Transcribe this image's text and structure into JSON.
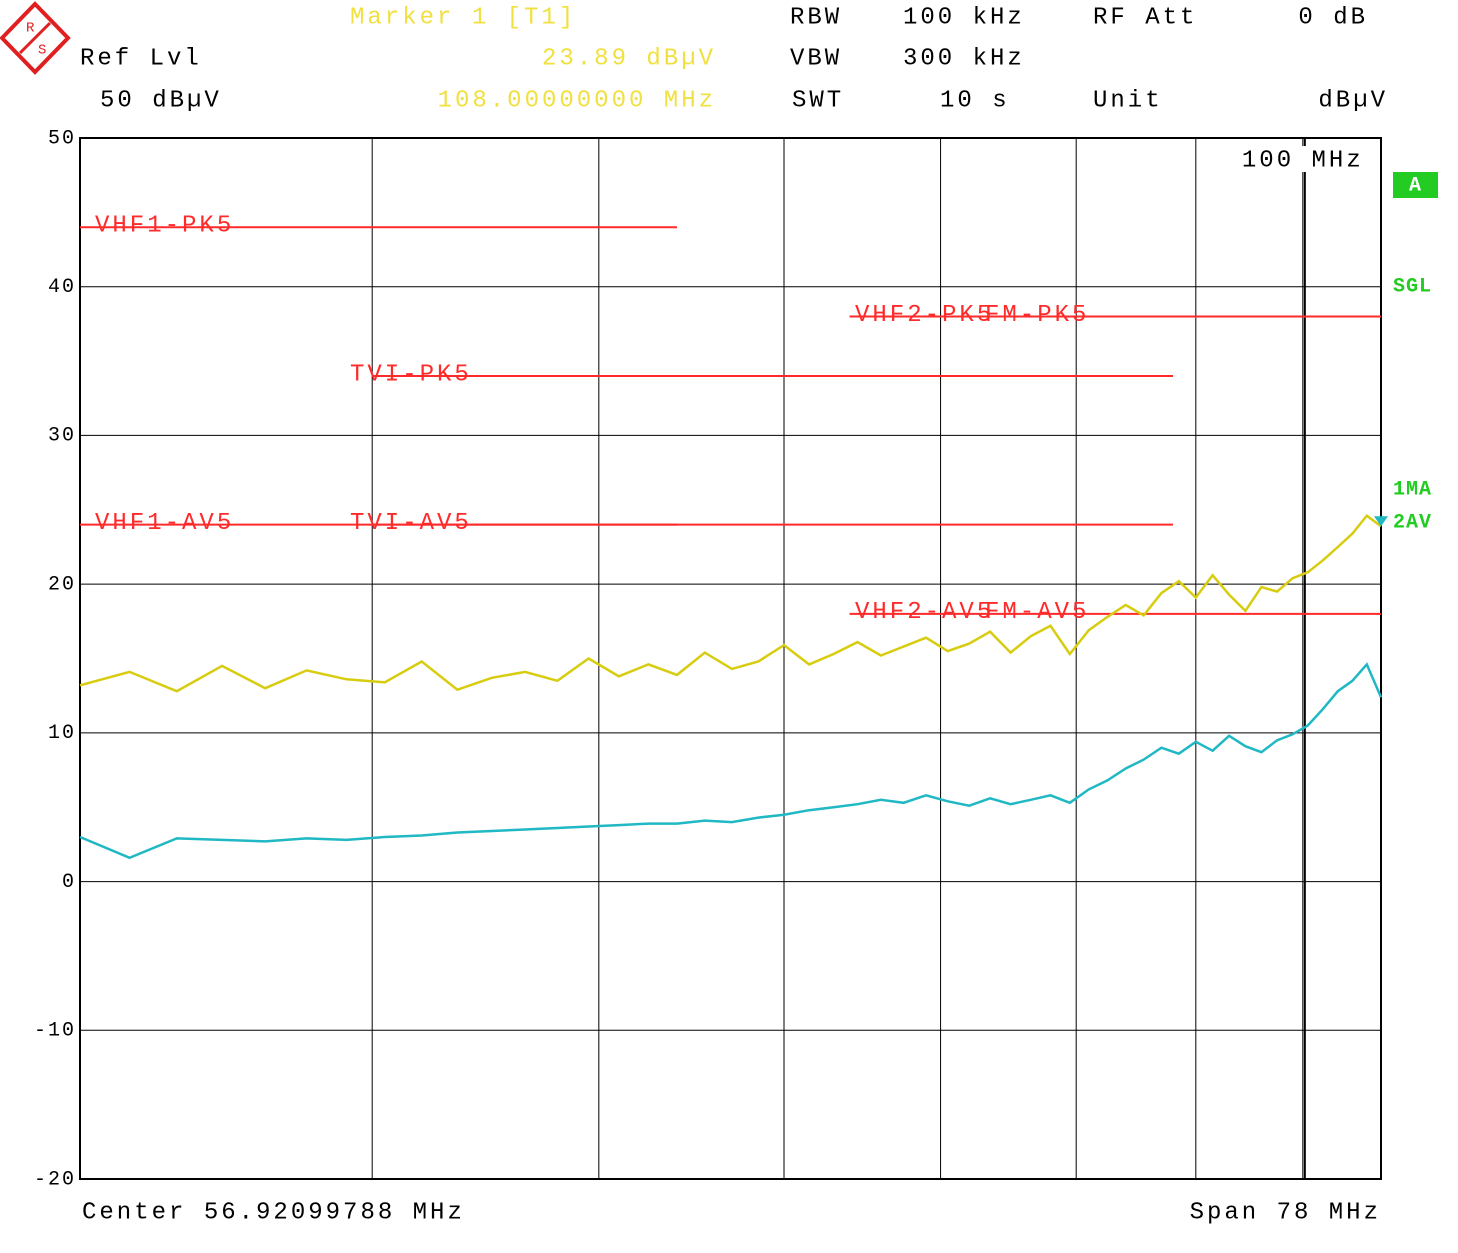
{
  "header": {
    "marker": "Marker 1 [T1]",
    "marker_level": "23.89 dBµV",
    "marker_freq": "108.00000000 MHz",
    "ref_lvl_label": "Ref Lvl",
    "ref_lvl": "50 dBµV",
    "rbw_label": "RBW",
    "rbw": "100 kHz",
    "vbw_label": "VBW",
    "vbw": "300 kHz",
    "swt_label": "SWT",
    "swt": "10 s",
    "rf_att_label": "RF Att",
    "rf_att": "0 dB",
    "unit_label": "Unit",
    "unit": "dBµV"
  },
  "footer": {
    "center": "Center 56.92099788 MHz",
    "span": "Span 78 MHz"
  },
  "status": {
    "trace_mode": "A",
    "sweep": "SGL"
  },
  "chart_data": {
    "type": "line",
    "xscale": "log",
    "xlim": [
      30,
      108
    ],
    "ylim": [
      -20,
      50
    ],
    "yticks": [
      -20,
      -10,
      0,
      10,
      20,
      30,
      40,
      50
    ],
    "xgrid": [
      40,
      50,
      60,
      70,
      80,
      90,
      100
    ],
    "xticks": [
      {
        "value": 100,
        "label": "100 MHz"
      }
    ],
    "grid": true,
    "legend": "right",
    "legend_color": "#22cc22",
    "x": [
      30,
      31.5,
      33,
      34.5,
      36,
      37.5,
      39,
      40.5,
      42,
      43.5,
      45,
      46.5,
      48,
      49.5,
      51,
      52.5,
      54,
      55.5,
      57,
      58.5,
      60,
      61.5,
      63,
      64.5,
      66,
      67.5,
      69,
      70.5,
      72,
      73.5,
      75,
      76.5,
      78,
      79.5,
      81,
      82.5,
      84,
      85.5,
      87,
      88.5,
      90,
      91.5,
      93,
      94.5,
      96,
      97.5,
      99,
      100.5,
      102,
      103.5,
      105,
      106.5,
      108
    ],
    "series": [
      {
        "name": "1MA",
        "color": "#d8cc10",
        "values": [
          13.2,
          14.1,
          12.8,
          14.5,
          13.0,
          14.2,
          13.6,
          13.4,
          14.8,
          12.9,
          13.7,
          14.1,
          13.5,
          15.0,
          13.8,
          14.6,
          13.9,
          15.4,
          14.3,
          14.8,
          15.9,
          14.6,
          15.3,
          16.1,
          15.2,
          15.8,
          16.4,
          15.5,
          16.0,
          16.8,
          15.4,
          16.5,
          17.2,
          15.3,
          16.9,
          17.8,
          18.6,
          17.9,
          19.4,
          20.2,
          19.1,
          20.6,
          19.3,
          18.2,
          19.8,
          19.5,
          20.4,
          20.8,
          21.6,
          22.5,
          23.4,
          24.6,
          23.89
        ]
      },
      {
        "name": "2AV",
        "color": "#20b8c4",
        "values": [
          3.0,
          1.6,
          2.9,
          2.8,
          2.7,
          2.9,
          2.8,
          3.0,
          3.1,
          3.3,
          3.4,
          3.5,
          3.6,
          3.7,
          3.8,
          3.9,
          3.9,
          4.1,
          4.0,
          4.3,
          4.5,
          4.8,
          5.0,
          5.2,
          5.5,
          5.3,
          5.8,
          5.4,
          5.1,
          5.6,
          5.2,
          5.5,
          5.8,
          5.3,
          6.2,
          6.8,
          7.6,
          8.2,
          9.0,
          8.6,
          9.4,
          8.8,
          9.8,
          9.1,
          8.7,
          9.5,
          9.9,
          10.5,
          11.6,
          12.8,
          13.5,
          14.6,
          12.4
        ]
      }
    ],
    "limit_color": "#ff2a2a",
    "limit_lines": [
      {
        "name": "VHF1-PK5",
        "value": 44,
        "x": [
          30,
          54
        ]
      },
      {
        "name": "TVI-PK5",
        "value": 34,
        "x": [
          40,
          88
        ]
      },
      {
        "name": "VHF2-PK5",
        "value": 38,
        "x": [
          64,
          88
        ]
      },
      {
        "name": "FM-PK5",
        "value": 38,
        "x": [
          88,
          108
        ]
      },
      {
        "name": "VHF1-AV5",
        "value": 24,
        "x": [
          30,
          54
        ]
      },
      {
        "name": "TVI-AV5",
        "value": 24,
        "x": [
          40,
          88
        ]
      },
      {
        "name": "VHF2-AV5",
        "value": 18,
        "x": [
          64,
          88
        ]
      },
      {
        "name": "FM-AV5",
        "value": 18,
        "x": [
          88,
          108
        ]
      }
    ]
  }
}
